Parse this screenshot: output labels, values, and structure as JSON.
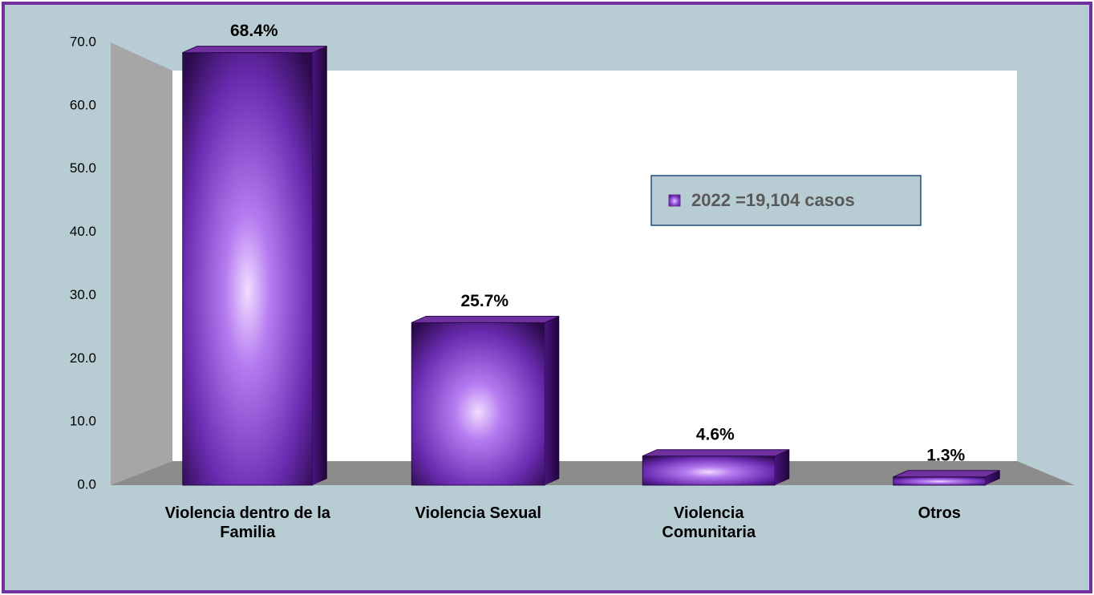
{
  "chart_data": {
    "type": "bar3d",
    "categories": [
      "Violencia dentro de la Familia",
      "Violencia Sexual",
      "Violencia Comunitaria",
      "Otros"
    ],
    "series": [
      {
        "name": "2022 =19,104 casos",
        "color": "#7030a0",
        "values": [
          68.4,
          25.7,
          4.6,
          1.3
        ],
        "value_labels": [
          "68.4%",
          "25.7%",
          "4.6%",
          "1.3%"
        ]
      }
    ],
    "ylim": [
      0,
      70
    ],
    "yticks": [
      {
        "value": 0,
        "label": "0.0"
      },
      {
        "value": 10,
        "label": "10.0"
      },
      {
        "value": 20,
        "label": "20.0"
      },
      {
        "value": 30,
        "label": "30.0"
      },
      {
        "value": 40,
        "label": "40.0"
      },
      {
        "value": 50,
        "label": "50.0"
      },
      {
        "value": 60,
        "label": "60.0"
      },
      {
        "value": 70,
        "label": "70.0"
      }
    ],
    "legend": "right"
  }
}
